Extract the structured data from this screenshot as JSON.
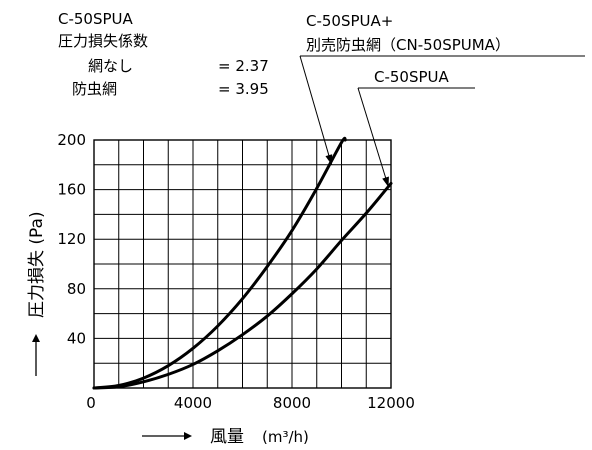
{
  "chart_data": {
    "type": "line",
    "xlabel": "風量",
    "xlabel_unit": "(m³/h)",
    "ylabel": "圧力損失 (Pa)",
    "xlim": [
      0,
      12000
    ],
    "ylim": [
      0,
      200
    ],
    "x_ticks": [
      0,
      4000,
      8000,
      12000
    ],
    "y_ticks": [
      40,
      80,
      120,
      160,
      200
    ],
    "grid": true,
    "coef_block": {
      "title": "C-50SPUA",
      "heading": "圧力損失係数",
      "rows": [
        {
          "label": "網なし",
          "value": "= 2.37"
        },
        {
          "label": "防虫網",
          "value": "= 3.95"
        }
      ]
    },
    "series": [
      {
        "name": "C-50SPUA+\n別売防虫網（CN-50SPUMA）",
        "points": [
          [
            0,
            0
          ],
          [
            1000,
            2
          ],
          [
            2000,
            8
          ],
          [
            3000,
            18
          ],
          [
            4000,
            32
          ],
          [
            5000,
            50
          ],
          [
            6000,
            72
          ],
          [
            7000,
            98
          ],
          [
            8000,
            127
          ],
          [
            9000,
            161
          ],
          [
            10000,
            198
          ],
          [
            10150,
            200
          ]
        ]
      },
      {
        "name": "C-50SPUA",
        "points": [
          [
            0,
            0
          ],
          [
            1000,
            1
          ],
          [
            2000,
            5
          ],
          [
            3000,
            11
          ],
          [
            4000,
            19
          ],
          [
            5000,
            30
          ],
          [
            6000,
            43
          ],
          [
            7000,
            58
          ],
          [
            8000,
            76
          ],
          [
            9000,
            96
          ],
          [
            10000,
            119
          ],
          [
            11000,
            141
          ],
          [
            12000,
            165
          ]
        ]
      }
    ]
  }
}
